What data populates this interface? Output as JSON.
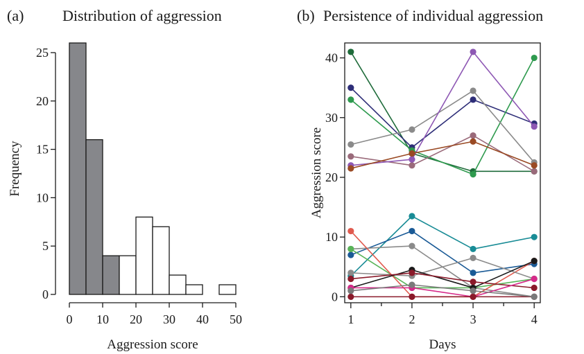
{
  "panel_a": {
    "letter": "(a)",
    "title": "Distribution of aggression"
  },
  "panel_b": {
    "letter": "(b)",
    "title": "Persistence of individual aggression"
  },
  "chart_data": [
    {
      "type": "bar",
      "title": "Distribution of aggression",
      "xlabel": "Aggression score",
      "ylabel": "Frequency",
      "xlim": [
        0,
        50
      ],
      "ylim": [
        0,
        26
      ],
      "x_ticks": [
        0,
        10,
        20,
        30,
        40,
        50
      ],
      "y_ticks": [
        0,
        5,
        10,
        15,
        20,
        25
      ],
      "bin_width": 5,
      "bins": [
        {
          "x0": 0,
          "x1": 5,
          "count": 26,
          "shaded": true
        },
        {
          "x0": 5,
          "x1": 10,
          "count": 16,
          "shaded": true
        },
        {
          "x0": 10,
          "x1": 15,
          "count": 4,
          "shaded": true
        },
        {
          "x0": 15,
          "x1": 20,
          "count": 4,
          "shaded": false
        },
        {
          "x0": 20,
          "x1": 25,
          "count": 8,
          "shaded": false
        },
        {
          "x0": 25,
          "x1": 30,
          "count": 7,
          "shaded": false
        },
        {
          "x0": 30,
          "x1": 35,
          "count": 2,
          "shaded": false
        },
        {
          "x0": 35,
          "x1": 40,
          "count": 1,
          "shaded": false
        },
        {
          "x0": 40,
          "x1": 45,
          "count": 0,
          "shaded": false
        },
        {
          "x0": 45,
          "x1": 50,
          "count": 1,
          "shaded": false
        }
      ],
      "colors": {
        "shaded": "#86878b",
        "unshaded": "#ffffff",
        "edge": "#1a1a1a"
      }
    },
    {
      "type": "line",
      "title": "Persistence of individual aggression",
      "xlabel": "Days",
      "ylabel": "Aggression score",
      "x": [
        1,
        2,
        3,
        4
      ],
      "xlim": [
        0.9,
        4.1
      ],
      "ylim": [
        -1,
        42.5
      ],
      "x_ticks": [
        1,
        2,
        3,
        4
      ],
      "y_ticks": [
        0,
        10,
        20,
        30,
        40
      ],
      "series": [
        {
          "color": "#1e6b3a",
          "values": [
            41,
            24,
            21,
            21
          ]
        },
        {
          "color": "#2e2e78",
          "values": [
            35,
            25,
            33,
            29
          ]
        },
        {
          "color": "#2e9a4e",
          "values": [
            33,
            24.5,
            20.5,
            40
          ]
        },
        {
          "color": "#8a8a8a",
          "values": [
            25.5,
            28,
            34.5,
            22.5
          ]
        },
        {
          "color": "#9a6a7a",
          "values": [
            23.5,
            22,
            27,
            21
          ]
        },
        {
          "color": "#8e58b4",
          "values": [
            22,
            23,
            41,
            28.5
          ]
        },
        {
          "color": "#9a4a24",
          "values": [
            21.5,
            24,
            26,
            22
          ]
        },
        {
          "color": "#198c96",
          "values": [
            3.5,
            13.5,
            8,
            10
          ]
        },
        {
          "color": "#1a5a96",
          "values": [
            7,
            11,
            4,
            5.5
          ]
        },
        {
          "color": "#8a8a8a",
          "values": [
            8,
            8.5,
            1.5,
            0
          ]
        },
        {
          "color": "#58b458",
          "values": [
            8,
            1.5,
            1.5,
            3
          ]
        },
        {
          "color": "#e05a4e",
          "values": [
            11,
            0,
            0,
            6
          ]
        },
        {
          "color": "#8a8a8a",
          "values": [
            4,
            3.5,
            6.5,
            3
          ]
        },
        {
          "color": "#1a1a1a",
          "values": [
            1.5,
            4.5,
            1.5,
            6
          ]
        },
        {
          "color": "#8a1a2a",
          "values": [
            3,
            4,
            2.5,
            1.5
          ]
        },
        {
          "color": "#d62a8a",
          "values": [
            1.5,
            1.5,
            0,
            3
          ]
        },
        {
          "color": "#8a1a2a",
          "values": [
            0,
            0,
            0,
            0
          ]
        },
        {
          "color": "#7a7a7a",
          "values": [
            1,
            2,
            1,
            0
          ]
        }
      ]
    }
  ]
}
